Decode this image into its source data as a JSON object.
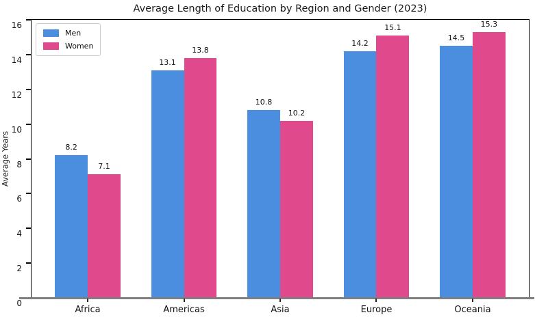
{
  "chart_data": {
    "type": "bar",
    "title": "Average Length of Education by Region and Gender (2023)",
    "xlabel": "",
    "ylabel": "Average Years",
    "categories": [
      "Africa",
      "Americas",
      "Asia",
      "Europe",
      "Oceania"
    ],
    "series": [
      {
        "name": "Men",
        "color": "#4B8EE0",
        "values": [
          8.2,
          13.1,
          10.8,
          14.2,
          14.5
        ]
      },
      {
        "name": "Women",
        "color": "#E0498C",
        "values": [
          7.1,
          13.8,
          10.2,
          15.1,
          15.3
        ]
      }
    ],
    "ylim": [
      0,
      16
    ],
    "yticks": [
      0,
      2,
      4,
      6,
      8,
      10,
      12,
      14,
      16
    ],
    "grid": false,
    "legend_position": "upper left",
    "bar_value_labels": true,
    "axis_colors": {
      "spine": "#000000",
      "x_axis_line": "#7f7f7f",
      "tick_label": "#111111"
    }
  }
}
